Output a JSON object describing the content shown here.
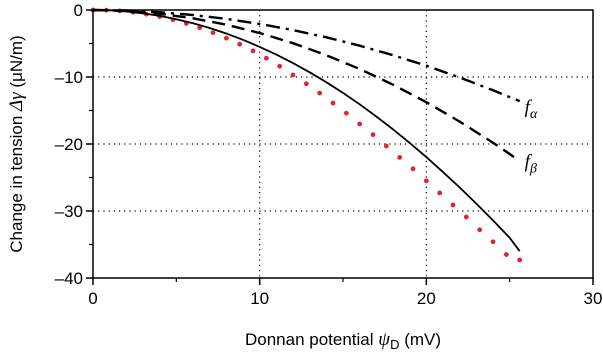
{
  "chart_data": {
    "type": "line",
    "xlabel": {
      "prefix": "Donnan potential ",
      "symbol": "ψ",
      "sub": "D",
      "suffix": " (mV)"
    },
    "ylabel": {
      "prefix": "Change in tension ",
      "symbol": "Δγ",
      "suffix": " (μN/m)"
    },
    "xlim": [
      0,
      30
    ],
    "ylim": [
      -40,
      0
    ],
    "xticks": [
      0,
      10,
      20,
      30
    ],
    "yticks": [
      0,
      -10,
      -20,
      -30,
      -40
    ],
    "x_tick_labels": [
      "0",
      "10",
      "20",
      "30"
    ],
    "y_tick_labels": [
      "0",
      "–10",
      "–20",
      "–30",
      "–40"
    ],
    "grid": "dotted",
    "series": [
      {
        "name": "",
        "style": "dots",
        "color": "#e0262a",
        "x": [
          0,
          0.8,
          1.6,
          2.4,
          3.2,
          4.0,
          4.8,
          5.6,
          6.4,
          7.2,
          8.0,
          8.8,
          9.6,
          10.4,
          11.2,
          12.0,
          12.8,
          13.6,
          14.4,
          15.2,
          16.0,
          16.8,
          17.6,
          18.4,
          19.2,
          20.0,
          20.8,
          21.6,
          22.4,
          23.2,
          24.0,
          24.8,
          25.6
        ],
        "y": [
          0,
          -0.03,
          -0.14,
          -0.33,
          -0.62,
          -0.98,
          -1.45,
          -2.0,
          -2.64,
          -3.38,
          -4.2,
          -5.1,
          -6.1,
          -7.2,
          -8.4,
          -9.7,
          -11.0,
          -12.4,
          -13.9,
          -15.4,
          -17.0,
          -18.6,
          -20.3,
          -22.0,
          -23.7,
          -25.5,
          -27.3,
          -29.1,
          -30.9,
          -32.8,
          -34.6,
          -36.5,
          -37.3
        ]
      },
      {
        "name": "",
        "style": "solid",
        "color": "#000000",
        "x": [
          0,
          1,
          2,
          3,
          4,
          5,
          6,
          7,
          8,
          9,
          10,
          11,
          12,
          13,
          14,
          15,
          16,
          17,
          18,
          19,
          20,
          21,
          22,
          23,
          24,
          25,
          25.6
        ],
        "y": [
          0,
          -0.06,
          -0.22,
          -0.49,
          -0.88,
          -1.37,
          -1.98,
          -2.69,
          -3.51,
          -4.45,
          -5.5,
          -6.65,
          -7.92,
          -9.3,
          -10.78,
          -12.38,
          -14.08,
          -15.9,
          -17.8,
          -19.83,
          -21.95,
          -24.2,
          -26.5,
          -28.9,
          -31.4,
          -34.0,
          -36.0
        ]
      },
      {
        "name": "f_β",
        "style": "dashed",
        "color": "#000000",
        "x": [
          0,
          2,
          4,
          6,
          8,
          10,
          12,
          14,
          16,
          18,
          20,
          22,
          24,
          25.6
        ],
        "y": [
          0,
          -0.14,
          -0.55,
          -1.24,
          -2.2,
          -3.44,
          -4.96,
          -6.74,
          -8.81,
          -11.15,
          -13.76,
          -16.65,
          -19.81,
          -22.5
        ]
      },
      {
        "name": "f_α",
        "style": "dashdot",
        "color": "#000000",
        "x": [
          0,
          2,
          4,
          6,
          8,
          10,
          12,
          14,
          16,
          18,
          20,
          22,
          24,
          25.6
        ],
        "y": [
          0,
          -0.08,
          -0.33,
          -0.75,
          -1.33,
          -2.08,
          -3.0,
          -4.08,
          -5.33,
          -6.74,
          -8.32,
          -10.07,
          -11.98,
          -13.6
        ]
      }
    ],
    "annotations": [
      {
        "symbol": "f",
        "sub": "α",
        "x": 25.9,
        "y": -14.5
      },
      {
        "symbol": "f",
        "sub": "β",
        "x": 25.9,
        "y": -22.6
      }
    ]
  }
}
